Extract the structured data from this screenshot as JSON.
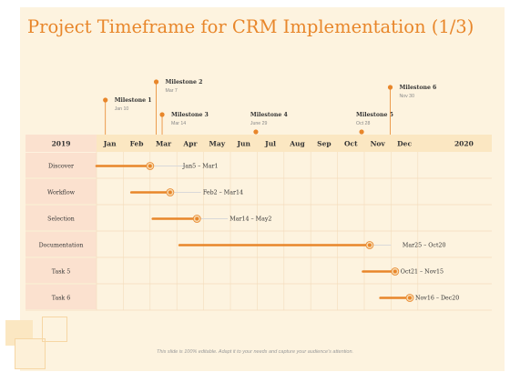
{
  "title": "Project Timeframe for CRM Implementation (1/3)",
  "footer": "This slide is 100% editable. Adapt it to your needs and capture your audience's attention.",
  "colors": {
    "accent": "#e8862a",
    "bar_dark": "#e8862a",
    "bar_light": "#f7d9ae",
    "track": "#d9d9d9",
    "header_band": "#fbe7c2",
    "label_column": "#fbe1cf",
    "background": "#fdf3df"
  },
  "timeline": {
    "year_start": "2019",
    "year_end": "2020",
    "months": [
      "Jan",
      "Feb",
      "Mar",
      "Apr",
      "May",
      "Jun",
      "Jul",
      "Aug",
      "Sep",
      "Oct",
      "Nov",
      "Dec"
    ]
  },
  "milestones": [
    {
      "title": "Milestone 1",
      "date": "Jan 10",
      "month_pos": 0.33
    },
    {
      "title": "Milestone 2",
      "date": "Mar 7",
      "month_pos": 2.23
    },
    {
      "title": "Milestone 3",
      "date": "Mar 14",
      "month_pos": 2.45
    },
    {
      "title": "Milestone 4",
      "date": "June 29",
      "month_pos": 5.95
    },
    {
      "title": "Milestone 5",
      "date": "Oct 28",
      "month_pos": 9.9
    },
    {
      "title": "Milestone 6",
      "date": "Nov 30",
      "month_pos": 10.97
    }
  ],
  "tasks": [
    {
      "name": "Discover",
      "range": "Jan5 – Mar1",
      "start": 0.0,
      "end": 2.0,
      "track_end": 3.3
    },
    {
      "name": "Workflow",
      "range": "Feb2 – Mar14",
      "start": 1.3,
      "end": 2.75,
      "track_end": 3.9
    },
    {
      "name": "Selection",
      "range": "Mar14 – May2",
      "start": 2.1,
      "end": 3.75,
      "track_end": 4.9
    },
    {
      "name": "Documentation",
      "range": "Mar25 – Oct20",
      "start": 3.1,
      "end": 10.2,
      "track_end": 11.0
    },
    {
      "name": "Task 5",
      "range": "Oct21 – Nov15",
      "start": 9.95,
      "end": 11.15,
      "track_end": 11.2
    },
    {
      "name": "Task 6",
      "range": "Nov16 – Dec20",
      "start": 10.6,
      "end": 11.7,
      "track_end": 11.75
    }
  ]
}
